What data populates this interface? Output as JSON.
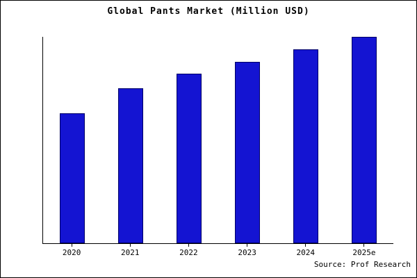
{
  "title": "Global Pants Market (Million USD)",
  "source": "Source: Prof Research",
  "colors": {
    "bar": "#1414d2",
    "bar_border": "#000066",
    "axis": "#000000",
    "background": "#ffffff"
  },
  "chart_data": {
    "type": "bar",
    "title": "Global Pants Market (Million USD)",
    "categories": [
      "2020",
      "2021",
      "2022",
      "2023",
      "2024",
      "2025e"
    ],
    "values": [
      63,
      75,
      82,
      88,
      94,
      100
    ],
    "xlabel": "",
    "ylabel": "",
    "ylim": [
      0,
      100
    ],
    "grid": false,
    "legend": false,
    "note": "No y-axis tick labels are shown in the figure; bar values are relative estimates with the tallest bar (2025e) normalized to 100."
  }
}
